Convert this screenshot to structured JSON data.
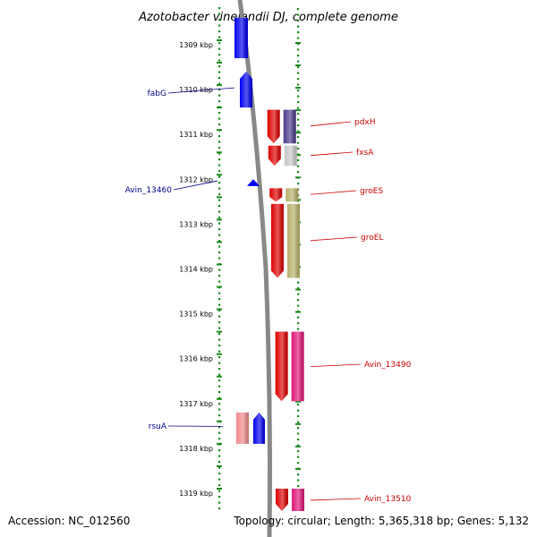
{
  "title": "Azotobacter vinelandii DJ, complete genome",
  "footer": {
    "accession": "Accession: NC_012560",
    "info": "Topology: circular; Length: 5,365,318 bp; Genes: 5,132"
  },
  "colors": {
    "tick": "#1a8a1a",
    "backbone": "#888888",
    "left_label": "#00008b",
    "right_label": "#cc0000"
  },
  "ruler": {
    "start_kbp": 1309,
    "end_kbp": 1319,
    "tick_labels": [
      "1309 kbp",
      "1310 kbp",
      "1311 kbp",
      "1312 kbp",
      "1313 kbp",
      "1314 kbp",
      "1315 kbp",
      "1316 kbp",
      "1317 kbp",
      "1318 kbp",
      "1319 kbp"
    ]
  },
  "genes": [
    {
      "name": "",
      "strand": "left",
      "color": "#0000ee",
      "start_kbp": 1308.4,
      "end_kbp": 1309.3,
      "labeled": false
    },
    {
      "name": "fabG",
      "strand": "left",
      "color": "#0000ee",
      "start_kbp": 1309.6,
      "end_kbp": 1310.4,
      "labeled": true
    },
    {
      "name": "pdxH",
      "strand": "right",
      "color": "#dd0000",
      "start_kbp": 1310.45,
      "end_kbp": 1311.2,
      "labeled": true,
      "pair_color": "#4a3a8a"
    },
    {
      "name": "fxsA",
      "strand": "right",
      "color": "#dd0000",
      "start_kbp": 1311.25,
      "end_kbp": 1311.7,
      "labeled": true,
      "pair_color": "#c8c8c8"
    },
    {
      "name": "Avin_13460",
      "strand": "left",
      "color": "#0000ee",
      "start_kbp": 1312.0,
      "end_kbp": 1312.15,
      "labeled": true
    },
    {
      "name": "groES",
      "strand": "right",
      "color": "#dd0000",
      "start_kbp": 1312.2,
      "end_kbp": 1312.5,
      "labeled": true,
      "pair_color": "#b8b06a"
    },
    {
      "name": "groEL",
      "strand": "right",
      "color": "#dd0000",
      "start_kbp": 1312.55,
      "end_kbp": 1314.2,
      "labeled": true,
      "pair_color": "#b8b06a"
    },
    {
      "name": "Avin_13490",
      "strand": "right",
      "color": "#dd0000",
      "start_kbp": 1315.4,
      "end_kbp": 1316.95,
      "labeled": true,
      "pair_color": "#e0167a"
    },
    {
      "name": "rsuA",
      "strand": "left",
      "color": "#0000ee",
      "start_kbp": 1317.2,
      "end_kbp": 1317.9,
      "labeled": true,
      "pair_color": "#ee8888"
    },
    {
      "name": "Avin_13510",
      "strand": "right",
      "color": "#dd0000",
      "start_kbp": 1318.9,
      "end_kbp": 1319.4,
      "labeled": true,
      "pair_color": "#e0167a"
    }
  ]
}
